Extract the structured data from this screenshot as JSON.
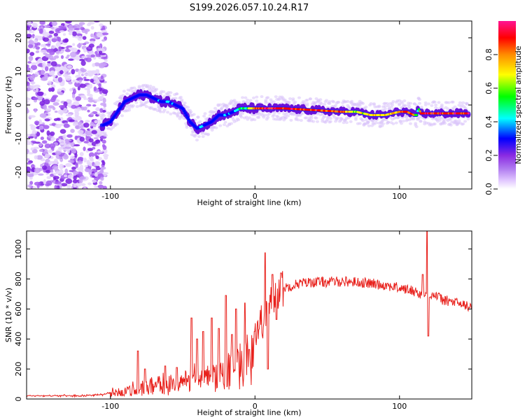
{
  "title": "S199.2026.057.10.24.R17",
  "chart_data": [
    {
      "type": "heatmap",
      "name": "spectrogram",
      "xlabel": "Height of straight line (km)",
      "ylabel": "Frequency (Hz)",
      "xlim": [
        -158,
        150
      ],
      "ylim": [
        -25,
        25
      ],
      "xticks": [
        -100,
        0,
        100
      ],
      "xtick_labels": [
        "-100",
        "0",
        "100"
      ],
      "yticks": [
        -20,
        -10,
        0,
        10,
        20
      ],
      "ytick_labels": [
        "-20",
        "-10",
        "0",
        "10",
        "20"
      ],
      "track": {
        "x": [
          -105,
          -100,
          -95,
          -90,
          -85,
          -80,
          -75,
          -70,
          -65,
          -60,
          -55,
          -50,
          -45,
          -40,
          -35,
          -30,
          -25,
          -20,
          -15,
          -10,
          -5,
          0,
          10,
          20,
          40,
          60,
          70,
          80,
          90,
          95,
          100,
          105,
          110,
          112,
          113,
          115,
          120,
          130,
          140,
          148
        ],
        "y": [
          -6,
          -5,
          -2,
          1,
          2,
          3,
          3,
          2,
          1,
          1,
          0,
          -1,
          -5,
          -7,
          -6,
          -5,
          -3,
          -3,
          -2,
          -1,
          -1,
          -1,
          -1,
          -1,
          -1.5,
          -2,
          -2,
          -3,
          -3,
          -2.5,
          -2,
          -2,
          -3,
          -3,
          -1,
          -2.5,
          -2.5,
          -2.5,
          -2.5,
          -2.5
        ],
        "intensity": [
          0.3,
          0.35,
          0.3,
          0.3,
          0.3,
          0.3,
          0.3,
          0.35,
          0.4,
          0.4,
          0.35,
          0.35,
          0.35,
          0.35,
          0.4,
          0.35,
          0.35,
          0.4,
          0.45,
          0.55,
          0.6,
          0.9,
          0.95,
          0.95,
          0.95,
          0.9,
          0.7,
          0.8,
          0.75,
          0.75,
          0.9,
          0.9,
          0.85,
          0.6,
          0.4,
          0.95,
          0.95,
          0.95,
          0.95,
          0.95
        ]
      },
      "noise_region_x": [
        -158,
        -103
      ],
      "colorbar": {
        "label": "Normalized spectral amplitude",
        "range": [
          0,
          1
        ],
        "ticks": [
          0.0,
          0.2,
          0.4,
          0.6,
          0.8
        ],
        "tick_labels": [
          "0.0",
          "0.2",
          "0.4",
          "0.6",
          "0.8"
        ],
        "colormap": [
          "#ffffff",
          "#e2c8ff",
          "#8a2be2",
          "#0000ff",
          "#00ffff",
          "#00ff00",
          "#ffff00",
          "#ff8c00",
          "#ff0000",
          "#ff1493"
        ]
      }
    },
    {
      "type": "line",
      "name": "snr",
      "xlabel": "Height of straight line (km)",
      "ylabel": "SNR (10 * v/v)",
      "xlim": [
        -158,
        150
      ],
      "ylim": [
        0,
        1120
      ],
      "xticks": [
        -100,
        0,
        100
      ],
      "xtick_labels": [
        "-100",
        "0",
        "100"
      ],
      "yticks": [
        0,
        200,
        400,
        600,
        800,
        1000
      ],
      "ytick_labels": [
        "0",
        "200",
        "400",
        "600",
        "800",
        "1000"
      ],
      "color": "#e8211c",
      "baseline": {
        "x": [
          -158,
          -120,
          -105,
          -98,
          -90,
          -80,
          -70,
          -60,
          -50,
          -40,
          -30,
          -20,
          -10,
          -5,
          0,
          5,
          10,
          15,
          20,
          30,
          40,
          50,
          60,
          70,
          80,
          90,
          100,
          110,
          115,
          118,
          121,
          125,
          130,
          140,
          150
        ],
        "y": [
          22,
          22,
          30,
          50,
          70,
          100,
          110,
          120,
          140,
          170,
          210,
          250,
          330,
          380,
          460,
          520,
          620,
          700,
          740,
          770,
          780,
          780,
          785,
          780,
          770,
          760,
          740,
          720,
          700,
          700,
          700,
          690,
          660,
          640,
          610
        ]
      },
      "spikes": [
        {
          "x": -81,
          "y": 320
        },
        {
          "x": -76,
          "y": 200
        },
        {
          "x": -62,
          "y": 220
        },
        {
          "x": -54,
          "y": 210
        },
        {
          "x": -44,
          "y": 540
        },
        {
          "x": -40,
          "y": 400
        },
        {
          "x": -36,
          "y": 450
        },
        {
          "x": -30,
          "y": 540
        },
        {
          "x": -25,
          "y": 470
        },
        {
          "x": -20,
          "y": 690
        },
        {
          "x": -16,
          "y": 430
        },
        {
          "x": -13,
          "y": 600
        },
        {
          "x": -7,
          "y": 640
        },
        {
          "x": -4,
          "y": 330
        },
        {
          "x": 7,
          "y": 975
        },
        {
          "x": 9,
          "y": 200
        },
        {
          "x": 12,
          "y": 830
        },
        {
          "x": 15,
          "y": 530
        },
        {
          "x": 18,
          "y": 840
        },
        {
          "x": 116,
          "y": 830
        },
        {
          "x": 119,
          "y": 1120
        },
        {
          "x": 120,
          "y": 420
        }
      ]
    }
  ]
}
